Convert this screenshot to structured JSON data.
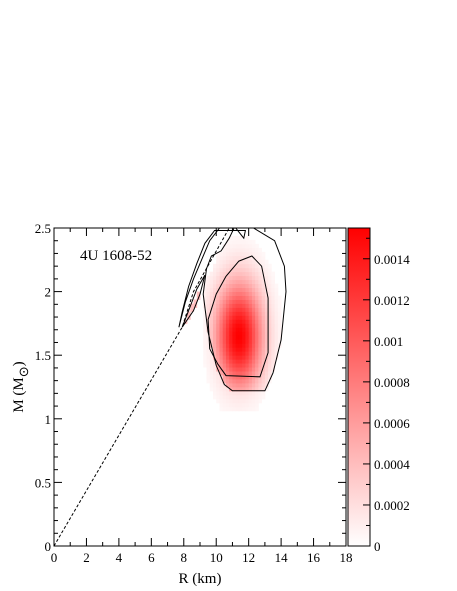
{
  "chart_data": {
    "type": "heatmap",
    "title": "4U 1608-52",
    "xlabel": "R (km)",
    "ylabel_main": "M (M",
    "ylabel_sub": "⊙",
    "ylabel_close": ")",
    "xlim": [
      0,
      18
    ],
    "ylim": [
      0,
      2.5
    ],
    "xticks": [
      0,
      2,
      4,
      6,
      8,
      10,
      12,
      14,
      16,
      18
    ],
    "yticks": [
      0,
      0.5,
      1,
      1.5,
      2,
      2.5
    ],
    "xtick_labels": [
      "0",
      "2",
      "4",
      "6",
      "8",
      "10",
      "12",
      "14",
      "16",
      "18"
    ],
    "ytick_labels": [
      "0",
      "0.5",
      "1",
      "1.5",
      "2",
      "2.5"
    ],
    "colorbar": {
      "range": [
        0,
        0.00155
      ],
      "ticks": [
        0,
        0.0002,
        0.0004,
        0.0006,
        0.0008,
        0.001,
        0.0012,
        0.0014
      ],
      "tick_labels": [
        "0",
        "0.0002",
        "0.0004",
        "0.0006",
        "0.0008",
        "0.001",
        "0.0012",
        "0.0014"
      ],
      "color_low": "#ffffff",
      "color_high": "#ff0000"
    },
    "peak": {
      "R_km": 11.4,
      "M_msun": 1.65,
      "density": 0.00155
    },
    "causality_line": {
      "style": "dashed",
      "points": [
        [
          0,
          0
        ],
        [
          7.9,
          1.72
        ],
        [
          8.6,
          2.0
        ],
        [
          10.8,
          2.5
        ]
      ]
    },
    "contours": [
      {
        "level": "outer",
        "points": [
          [
            7.7,
            1.72
          ],
          [
            8.1,
            1.92
          ],
          [
            8.6,
            2.1
          ],
          [
            9.1,
            2.25
          ],
          [
            9.6,
            2.4
          ],
          [
            10.2,
            2.5
          ],
          [
            11.1,
            2.5
          ],
          [
            10.8,
            2.42
          ],
          [
            10.3,
            2.32
          ],
          [
            9.7,
            2.28
          ],
          [
            9.4,
            2.18
          ],
          [
            9.2,
            1.98
          ],
          [
            9.5,
            1.68
          ],
          [
            10.0,
            1.42
          ],
          [
            10.5,
            1.27
          ],
          [
            11.0,
            1.22
          ],
          [
            13.0,
            1.22
          ],
          [
            13.5,
            1.36
          ],
          [
            14.0,
            1.62
          ],
          [
            14.3,
            2.0
          ],
          [
            14.2,
            2.2
          ],
          [
            13.6,
            2.4
          ],
          [
            12.3,
            2.5
          ],
          [
            11.2,
            2.5
          ],
          [
            11.7,
            2.42
          ],
          [
            11.8,
            2.48
          ],
          [
            9.9,
            2.48
          ],
          [
            9.3,
            2.38
          ],
          [
            8.8,
            2.22
          ],
          [
            8.3,
            2.04
          ],
          [
            7.9,
            1.84
          ],
          [
            7.7,
            1.72
          ]
        ]
      },
      {
        "level": "inner",
        "points": [
          [
            10.6,
            2.12
          ],
          [
            10.0,
            1.98
          ],
          [
            9.5,
            1.78
          ],
          [
            9.6,
            1.55
          ],
          [
            10.1,
            1.43
          ],
          [
            10.6,
            1.34
          ],
          [
            12.7,
            1.33
          ],
          [
            13.2,
            1.52
          ],
          [
            13.2,
            1.95
          ],
          [
            12.8,
            2.2
          ],
          [
            12.2,
            2.28
          ],
          [
            11.4,
            2.24
          ],
          [
            10.6,
            2.12
          ]
        ]
      },
      {
        "level": "left-finger",
        "points": [
          [
            7.9,
            1.72
          ],
          [
            8.3,
            1.85
          ],
          [
            8.8,
            2.02
          ],
          [
            9.3,
            2.13
          ],
          [
            9.0,
            1.98
          ],
          [
            8.6,
            1.85
          ],
          [
            7.9,
            1.72
          ]
        ]
      }
    ]
  }
}
